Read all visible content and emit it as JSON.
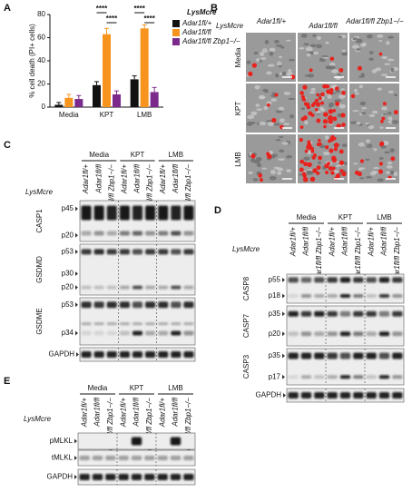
{
  "panel_labels": [
    "A",
    "B",
    "C",
    "D",
    "E"
  ],
  "conditions": [
    "Media",
    "KPT",
    "LMB"
  ],
  "genotypes": [
    "Adar1fl/+",
    "Adar1fl/fl",
    "Adar1fl/fl Zbp1−/−"
  ],
  "lysm": "LysMcre",
  "chart_data": {
    "type": "bar",
    "y_label": "% cell death (PI+ cells)",
    "categories": [
      "Media",
      "KPT",
      "LMB"
    ],
    "series": [
      {
        "name": "Adar1fl/+",
        "color": "#111111",
        "values": [
          2,
          19,
          24
        ],
        "errors": [
          2,
          3,
          3
        ]
      },
      {
        "name": "Adar1fl/fl",
        "color": "#f7941d",
        "values": [
          8,
          63,
          68
        ],
        "errors": [
          3,
          5,
          3
        ]
      },
      {
        "name": "Adar1fl/fl Zbp1−/−",
        "color": "#7b2a8c",
        "values": [
          7,
          11,
          13
        ],
        "errors": [
          3,
          3,
          4
        ]
      }
    ],
    "legend_title": "LysMcre",
    "annotations": [
      "****",
      "****",
      "****",
      "****"
    ],
    "ylim": [
      0,
      80
    ],
    "yticks": [
      0,
      20,
      40,
      60,
      80
    ]
  },
  "panel_c": {
    "proteins": [
      {
        "name": "CASP1",
        "bands": [
          "p45",
          "p20"
        ]
      },
      {
        "name": "GSDMD",
        "bands": [
          "p53",
          "p30",
          "p20"
        ]
      },
      {
        "name": "GSDME",
        "bands": [
          "p53",
          "p34"
        ]
      },
      {
        "name": "GAPDH",
        "bands": []
      }
    ]
  },
  "panel_d": {
    "proteins": [
      {
        "name": "CASP8",
        "bands": [
          "p55",
          "p18"
        ]
      },
      {
        "name": "CASP7",
        "bands": [
          "p35",
          "p20"
        ]
      },
      {
        "name": "CASP3",
        "bands": [
          "p35",
          "p17"
        ]
      },
      {
        "name": "GAPDH",
        "bands": []
      }
    ]
  },
  "panel_e": {
    "proteins": [
      {
        "name": "pMLKL",
        "bands": []
      },
      {
        "name": "tMLKL",
        "bands": []
      },
      {
        "name": "GAPDH",
        "bands": []
      }
    ]
  }
}
